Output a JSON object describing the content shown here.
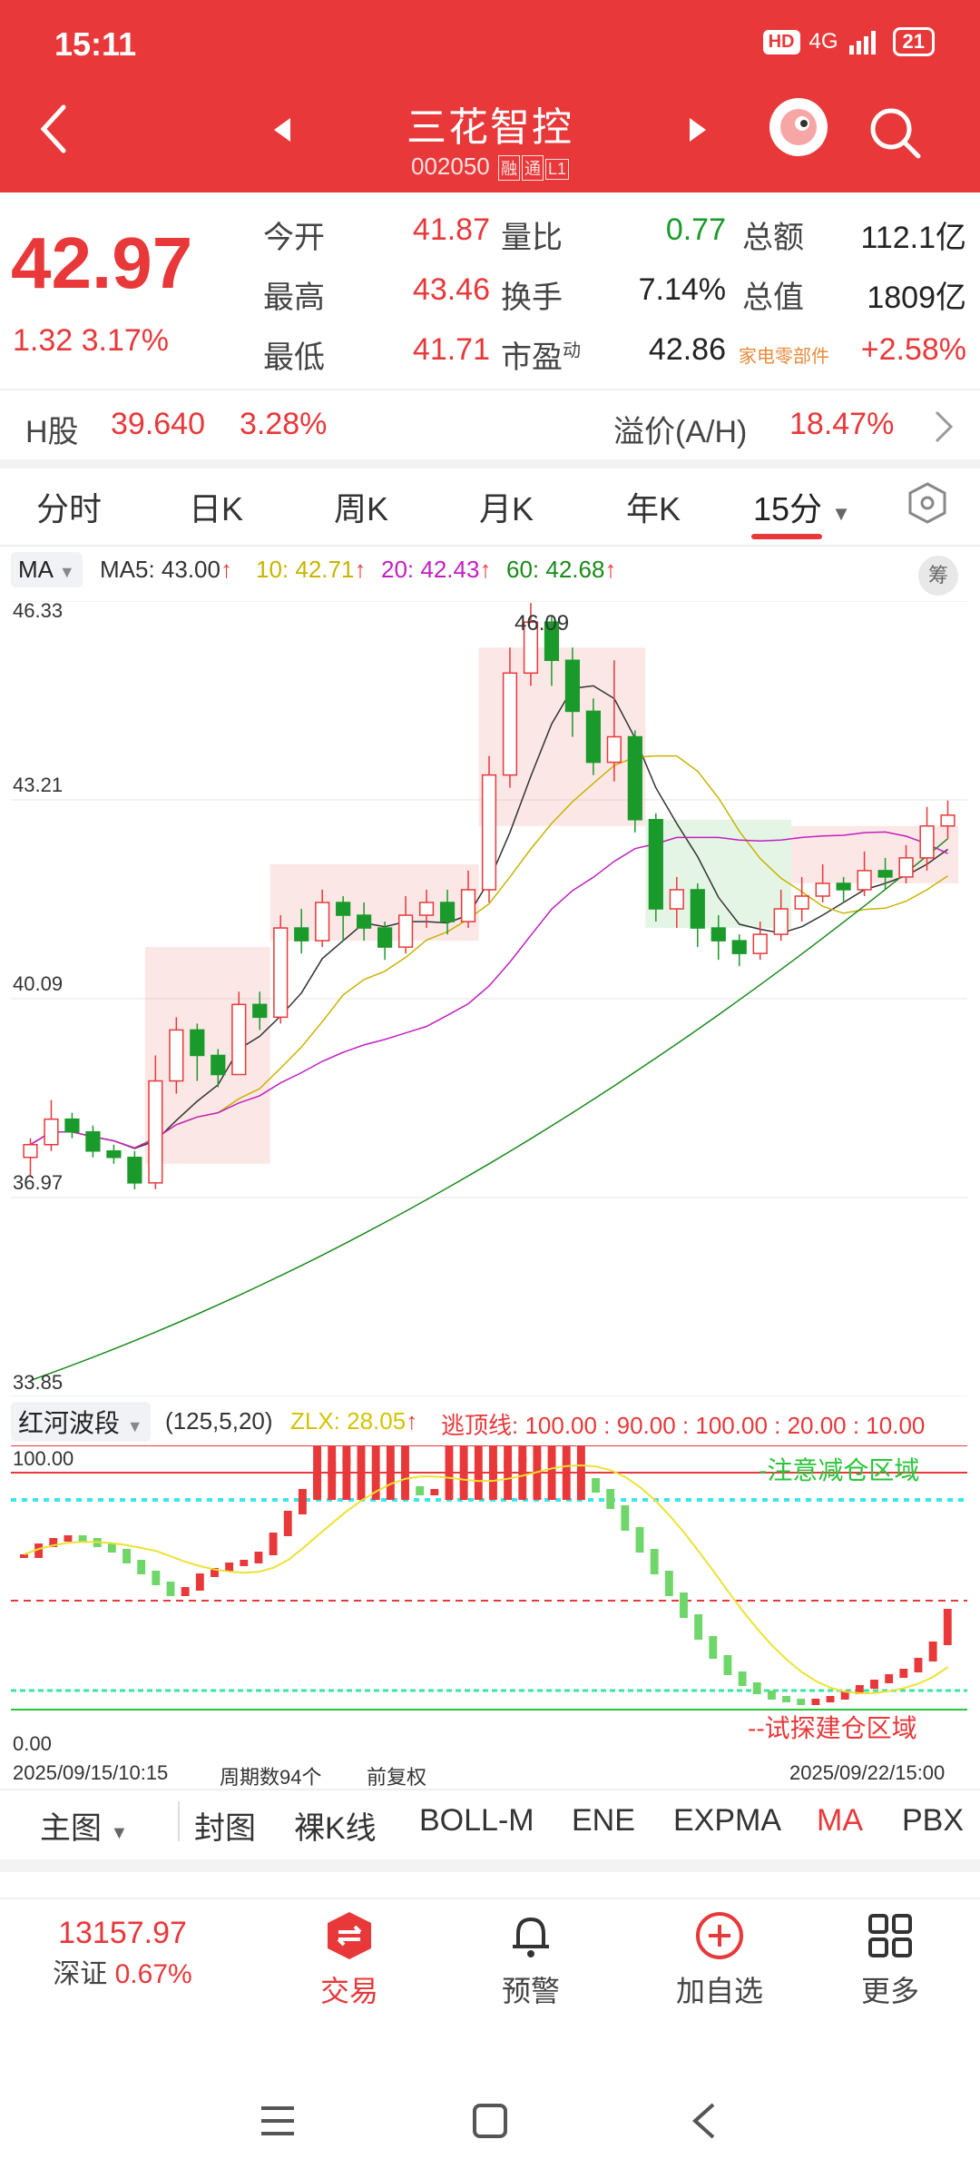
{
  "status": {
    "time": "15:11",
    "network": "4G",
    "hd": "HD",
    "battery": "21"
  },
  "header": {
    "title": "三花智控",
    "code": "002050",
    "tag1": "融",
    "tag2": "通",
    "tag3": "L1"
  },
  "quote": {
    "price": "42.97",
    "change": "1.32 3.17%",
    "rows": [
      {
        "l1": "今开",
        "v1": "41.87",
        "l2": "量比",
        "v2": "0.77",
        "l3": "总额",
        "v3": "112.1亿"
      },
      {
        "l1": "最高",
        "v1": "43.46",
        "l2": "换手",
        "v2": "7.14%",
        "l3": "总值",
        "v3": "1809亿"
      },
      {
        "l1": "最低",
        "v1": "41.71",
        "l2": "市盈",
        "l2sup": "动",
        "v2": "42.86",
        "l3": "家电零部件",
        "v3": "+2.58%"
      }
    ]
  },
  "hshare": {
    "label": "H股",
    "price": "39.640",
    "pct": "3.28%",
    "premium_label": "溢价(A/H)",
    "premium": "18.47%"
  },
  "ktabs": [
    "分时",
    "日K",
    "周K",
    "月K",
    "年K",
    "15分"
  ],
  "ma_legend": {
    "select": "MA",
    "ma5": "MA5: 43.00",
    "ma10": "10: 42.71",
    "ma20": "20: 42.43",
    "ma60": "60: 42.68",
    "chip": "筹"
  },
  "price_axis": [
    "46.33",
    "43.21",
    "40.09",
    "36.97",
    "33.85"
  ],
  "peak_label": "46.09",
  "colors": {
    "up": "#e8383a",
    "down": "#1a9a2a",
    "ma5": "#333333",
    "ma10": "#c8b400",
    "ma20": "#c020c0",
    "ma60": "#1a8a1a"
  },
  "indicator": {
    "name": "红河波段",
    "params": "(125,5,20)",
    "zlx": "ZLX: 28.05",
    "lines": "逃顶线: 100.00 : 90.00 : 100.00 : 20.00 : 10.00",
    "top_label": "100.00",
    "bottom_label": "0.00",
    "zone_top": "-注意减仓区域",
    "zone_bottom": "--试探建仓区域"
  },
  "footer_info": {
    "start": "2025/09/15/10:15",
    "count": "周期数94个",
    "adjust": "前复权",
    "end": "2025/09/22/15:00"
  },
  "ind_buttons": [
    "主图",
    "封图",
    "裸K线",
    "BOLL-M",
    "ENE",
    "EXPMA",
    "MA",
    "PBX"
  ],
  "bottom_nav": {
    "index_value": "13157.97",
    "index_name": "深证",
    "index_pct": "0.67%",
    "trade": "交易",
    "alert": "预警",
    "add": "加自选",
    "more": "更多"
  },
  "chart_data": {
    "type": "candlestick",
    "ylim": [
      33.85,
      46.33
    ],
    "candles": [
      [
        37.6,
        37.8,
        37.3,
        37.9
      ],
      [
        37.8,
        38.2,
        37.7,
        38.5
      ],
      [
        38.2,
        38.0,
        37.9,
        38.3
      ],
      [
        38.0,
        37.7,
        37.6,
        38.1
      ],
      [
        37.7,
        37.6,
        37.5,
        37.8
      ],
      [
        37.6,
        37.2,
        37.1,
        37.7
      ],
      [
        37.2,
        38.8,
        37.1,
        39.2
      ],
      [
        38.8,
        39.6,
        38.6,
        39.8
      ],
      [
        39.6,
        39.2,
        38.8,
        39.7
      ],
      [
        39.2,
        38.9,
        38.7,
        39.3
      ],
      [
        38.9,
        40.0,
        38.9,
        40.2
      ],
      [
        40.0,
        39.8,
        39.6,
        40.2
      ],
      [
        39.8,
        41.2,
        39.7,
        41.4
      ],
      [
        41.2,
        41.0,
        40.8,
        41.5
      ],
      [
        41.0,
        41.6,
        40.9,
        41.8
      ],
      [
        41.6,
        41.4,
        41.0,
        41.7
      ],
      [
        41.4,
        41.2,
        41.0,
        41.6
      ],
      [
        41.2,
        40.9,
        40.7,
        41.3
      ],
      [
        40.9,
        41.4,
        40.8,
        41.7
      ],
      [
        41.4,
        41.6,
        41.2,
        41.8
      ],
      [
        41.6,
        41.3,
        41.1,
        41.8
      ],
      [
        41.3,
        41.8,
        41.2,
        42.1
      ],
      [
        41.8,
        43.6,
        41.6,
        43.9
      ],
      [
        43.6,
        45.2,
        43.4,
        45.6
      ],
      [
        45.2,
        46.0,
        45.0,
        46.3
      ],
      [
        46.0,
        45.4,
        45.0,
        46.1
      ],
      [
        45.4,
        44.6,
        44.2,
        45.6
      ],
      [
        44.6,
        43.8,
        43.6,
        44.8
      ],
      [
        43.8,
        44.2,
        43.5,
        45.4
      ],
      [
        44.2,
        42.9,
        42.7,
        44.3
      ],
      [
        42.9,
        41.5,
        41.3,
        43.0
      ],
      [
        41.5,
        41.8,
        41.2,
        42.0
      ],
      [
        41.8,
        41.2,
        40.9,
        41.9
      ],
      [
        41.2,
        41.0,
        40.7,
        41.4
      ],
      [
        41.0,
        40.8,
        40.6,
        41.1
      ],
      [
        40.8,
        41.1,
        40.7,
        41.3
      ],
      [
        41.1,
        41.5,
        41.0,
        41.8
      ],
      [
        41.5,
        41.7,
        41.3,
        42.0
      ],
      [
        41.7,
        41.9,
        41.6,
        42.2
      ],
      [
        41.9,
        41.8,
        41.6,
        42.0
      ],
      [
        41.8,
        42.1,
        41.7,
        42.4
      ],
      [
        42.1,
        42.0,
        41.8,
        42.3
      ],
      [
        42.0,
        42.3,
        41.9,
        42.5
      ],
      [
        42.3,
        42.8,
        42.1,
        43.1
      ],
      [
        42.8,
        42.97,
        42.6,
        43.2
      ]
    ]
  }
}
